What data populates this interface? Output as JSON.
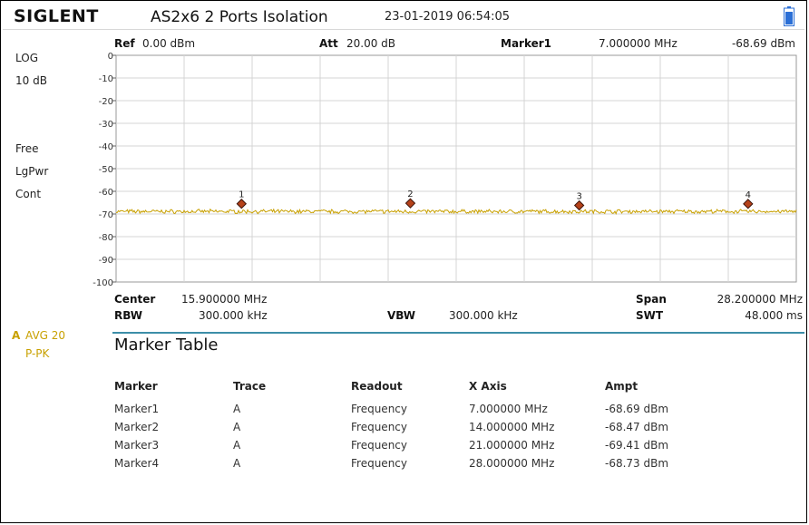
{
  "header": {
    "brand": "SIGLENT",
    "title": "AS2x6 2 Ports Isolation",
    "datetime": "23-01-2019   06:54:05"
  },
  "topbar": {
    "ref_label": "Ref",
    "ref_value": "0.00 dBm",
    "att_label": "Att",
    "att_value": "20.00 dB",
    "marker_label": "Marker1",
    "marker_freq": "7.000000 MHz",
    "marker_ampt": "-68.69 dBm"
  },
  "left_panel": {
    "scale": "LOG",
    "div": "10 dB",
    "trig": "Free",
    "det": "LgPwr",
    "sweep": "Cont"
  },
  "trace_info": {
    "trace": "A",
    "mode": "AVG 20",
    "det": "P-PK"
  },
  "bottombar": {
    "center_label": "Center",
    "center_value": "15.900000 MHz",
    "span_label": "Span",
    "span_value": "28.200000 MHz",
    "rbw_label": "RBW",
    "rbw_value": "300.000 kHz",
    "vbw_label": "VBW",
    "vbw_value": "300.000 kHz",
    "swt_label": "SWT",
    "swt_value": "48.000 ms"
  },
  "chart_data": {
    "type": "line",
    "xlim": [
      1.8,
      30.0
    ],
    "ylim": [
      -100,
      0
    ],
    "y_ticks": [
      "0",
      "-10",
      "-20",
      "-30",
      "-40",
      "-50",
      "-60",
      "-70",
      "-80",
      "-90",
      "-100"
    ],
    "grid": true,
    "trace_color": "#c8a000",
    "noise_floor": -69,
    "markers": [
      {
        "label": "1",
        "x": 7.0,
        "y": -68.69
      },
      {
        "label": "2",
        "x": 14.0,
        "y": -68.47
      },
      {
        "label": "3",
        "x": 21.0,
        "y": -69.41
      },
      {
        "label": "4",
        "x": 28.0,
        "y": -68.73
      }
    ]
  },
  "marker_table": {
    "title": "Marker Table",
    "headers": [
      "Marker",
      "Trace",
      "Readout",
      "X Axis",
      "Ampt"
    ],
    "rows": [
      [
        "Marker1",
        "A",
        "Frequency",
        "7.000000 MHz",
        "-68.69 dBm"
      ],
      [
        "Marker2",
        "A",
        "Frequency",
        "14.000000 MHz",
        "-68.47 dBm"
      ],
      [
        "Marker3",
        "A",
        "Frequency",
        "21.000000 MHz",
        "-69.41 dBm"
      ],
      [
        "Marker4",
        "A",
        "Frequency",
        "28.000000 MHz",
        "-68.73 dBm"
      ]
    ]
  },
  "colors": {
    "trace": "#c8a000",
    "marker_fill": "#b5421a",
    "battery": "#2b6fd6",
    "table_line": "#3d8ea8"
  }
}
